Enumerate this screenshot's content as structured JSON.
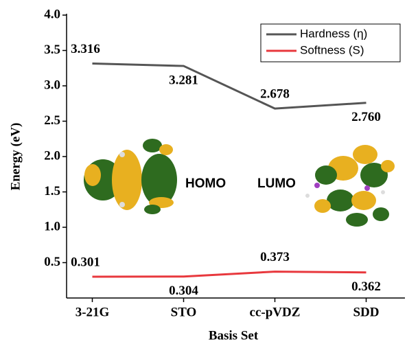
{
  "chart_data": {
    "type": "line",
    "x_label": "Basis Set",
    "y_label": "Energy (eV)",
    "categories": [
      "3-21G",
      "STO",
      "cc-pVDZ",
      "SDD"
    ],
    "series": [
      {
        "name": "Hardness (η)",
        "color": "#555555",
        "values": [
          3.316,
          3.281,
          2.678,
          2.76
        ],
        "value_labels": [
          "3.316",
          "3.281",
          "2.678",
          "2.760"
        ]
      },
      {
        "name": "Softness (S)",
        "color": "#e8383d",
        "values": [
          0.301,
          0.304,
          0.373,
          0.362
        ],
        "value_labels": [
          "0.301",
          "0.304",
          "0.373",
          "0.362"
        ]
      }
    ],
    "ylim": [
      0,
      4
    ],
    "yticks": [
      0.5,
      {
        "value": 1,
        "label": "1.0"
      },
      1.5,
      {
        "value": 2,
        "label": "2.0"
      },
      2.5,
      {
        "value": 3,
        "label": "3.0"
      },
      3.5,
      {
        "value": 4,
        "label": "4.0"
      }
    ],
    "legend": "upper right",
    "annotations": [
      "HOMO",
      "LUMO"
    ]
  }
}
